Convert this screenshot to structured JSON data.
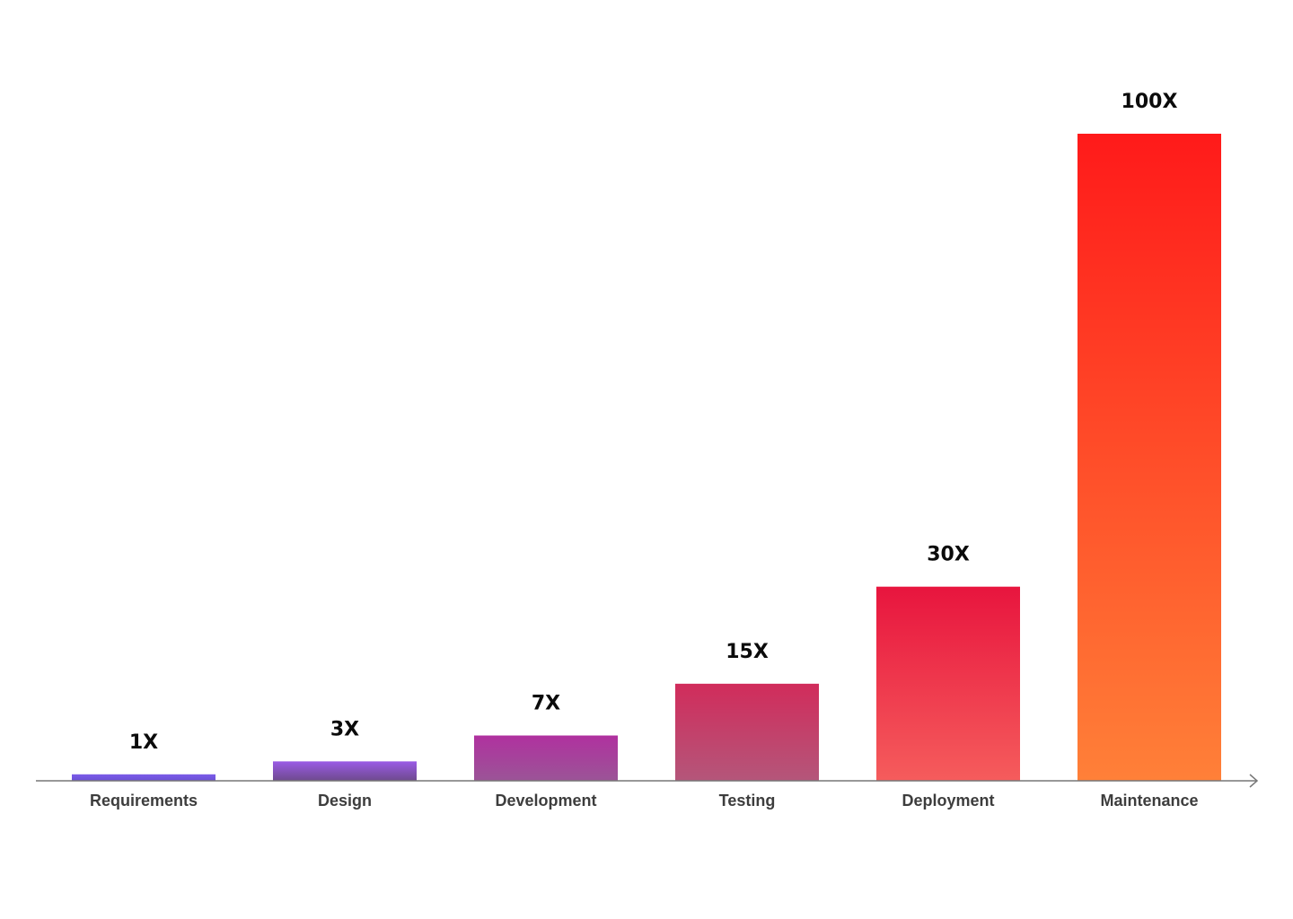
{
  "chart_data": {
    "type": "bar",
    "categories": [
      "Requirements",
      "Design",
      "Development",
      "Testing",
      "Deployment",
      "Maintenance"
    ],
    "values": [
      1,
      3,
      7,
      15,
      30,
      100
    ],
    "value_labels": [
      "1X",
      "3X",
      "7X",
      "15X",
      "30X",
      "100X"
    ],
    "title": "",
    "xlabel": "",
    "ylabel": "",
    "ylim": [
      0,
      100
    ],
    "grid": false,
    "legend": "none",
    "bar_gradients": [
      {
        "top": "#7b5ce8",
        "bottom": "#6a4fd6"
      },
      {
        "top": "#9a5be6",
        "bottom": "#6e4a8e"
      },
      {
        "top": "#b0319f",
        "bottom": "#9b5497"
      },
      {
        "top": "#d12c5b",
        "bottom": "#b4567a"
      },
      {
        "top": "#e8153e",
        "bottom": "#f55c5c"
      },
      {
        "top": "#ff1a1a",
        "bottom": "#ff8038"
      }
    ],
    "axis_color": "#777777"
  }
}
